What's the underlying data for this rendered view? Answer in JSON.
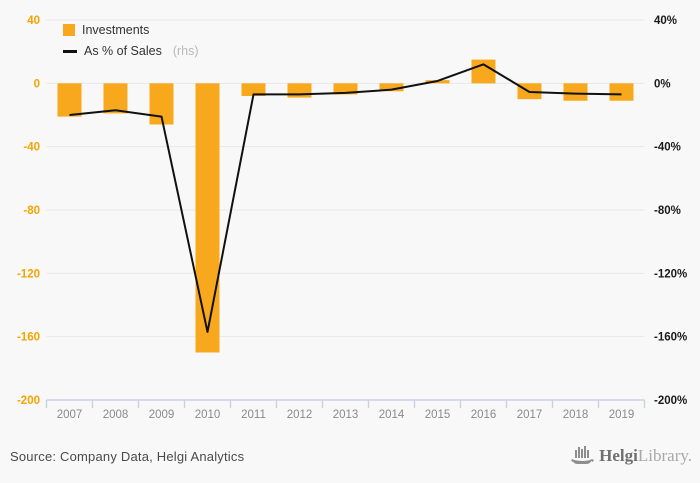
{
  "chart_data": {
    "type": "bar+line",
    "title": "",
    "categories": [
      "2007",
      "2008",
      "2009",
      "2010",
      "2011",
      "2012",
      "2013",
      "2014",
      "2015",
      "2016",
      "2017",
      "2018",
      "2019"
    ],
    "series": [
      {
        "name": "Investments",
        "type": "bar",
        "axis": "left",
        "values": [
          -21,
          -19,
          -26,
          -170,
          -8,
          -9,
          -7,
          -5,
          2,
          15,
          -10,
          -11,
          -11
        ]
      },
      {
        "name": "As % of Sales",
        "type": "line",
        "axis": "right",
        "values": [
          -20,
          -17,
          -21,
          -157,
          -7,
          -7,
          -6,
          -4,
          1.5,
          12,
          -5.5,
          -6.5,
          -7
        ]
      }
    ],
    "left_axis": {
      "ticks": [
        40,
        0,
        -40,
        -80,
        -120,
        -160,
        -200
      ],
      "range": [
        -200,
        40
      ]
    },
    "right_axis": {
      "ticks": [
        "40%",
        "0%",
        "-40%",
        "-80%",
        "-120%",
        "-160%",
        "-200%"
      ],
      "range": [
        -200,
        40
      ]
    },
    "grid": true,
    "legend_position": "top-left"
  },
  "legend": {
    "bar_label": "Investments",
    "line_label": "As % of Sales",
    "line_label_suffix": "(rhs)"
  },
  "colors": {
    "bar": "#F8A81C",
    "line": "#111111",
    "left_axis_label": "#F5A300",
    "right_axis_label": "#1a1a1a",
    "grid": "#e9e9e9",
    "axis_line": "#c9d2e4",
    "x_label": "#8a8a8a",
    "background": "#f8f8f8"
  },
  "footer": {
    "source": "Source: Company Data, Helgi Analytics",
    "logo_name": "Helgi",
    "logo_suffix": "Library."
  }
}
